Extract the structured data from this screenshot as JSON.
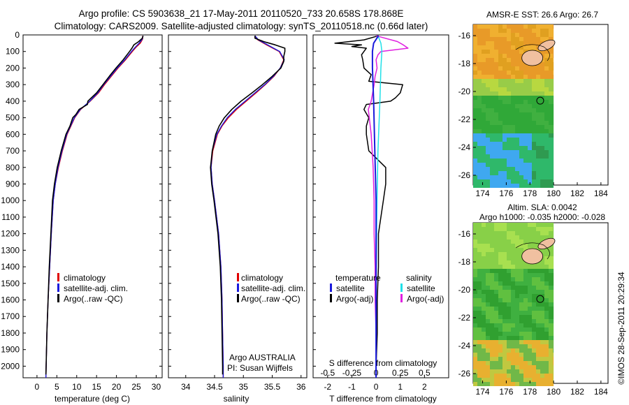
{
  "header": {
    "title_line1": "Argo profile: CS 5903638_21 17-May-2011 20110520_733 20.658S 178.868E",
    "title_line2": "Climatology: CARS2009. Satellite-adjusted climatology: synTS_20110518.nc (0.66d later)"
  },
  "depth_axis": {
    "ticks": [
      0,
      100,
      200,
      300,
      400,
      500,
      600,
      700,
      800,
      900,
      1000,
      1100,
      1200,
      1300,
      1400,
      1500,
      1600,
      1700,
      1800,
      1900,
      2000
    ],
    "ylim": [
      0,
      2070
    ]
  },
  "colors": {
    "climatology": "#e00000",
    "satellite": "#1a1adc",
    "argo": "#000000",
    "argo_adj_s": "#e020e0",
    "satellite_s": "#20e0e8"
  },
  "chart_data": [
    {
      "type": "line",
      "panel": "temperature",
      "xlabel": "temperature (deg C)",
      "xlim": [
        -3.5,
        31.5
      ],
      "xticks": [
        0,
        5,
        10,
        15,
        20,
        25,
        30
      ],
      "legend": [
        "climatology",
        "satellite-adj. clim.",
        "Argo(..raw -QC)"
      ],
      "series": [
        {
          "name": "climatology",
          "depth": [
            5,
            25,
            50,
            75,
            100,
            150,
            200,
            250,
            300,
            350,
            400,
            450,
            500,
            600,
            700,
            800,
            900,
            1000,
            1200,
            1400,
            1600,
            1800,
            2000,
            2070
          ],
          "values": [
            26.6,
            26.6,
            26.0,
            24.9,
            24.0,
            22.3,
            20.4,
            18.7,
            17.0,
            15.5,
            13.4,
            11.0,
            9.5,
            7.6,
            6.4,
            5.4,
            4.6,
            4.1,
            3.6,
            3.2,
            2.8,
            2.5,
            2.3,
            2.25
          ]
        },
        {
          "name": "satellite-adj. clim.",
          "depth": [
            5,
            25,
            50,
            75,
            100,
            150,
            200,
            250,
            300,
            350,
            400,
            450,
            500,
            600,
            700,
            800,
            900,
            1000,
            1200,
            1400,
            1600,
            1800,
            2000,
            2070
          ],
          "values": [
            26.7,
            26.5,
            25.7,
            24.7,
            23.8,
            22.1,
            20.2,
            18.5,
            16.8,
            15.3,
            13.3,
            10.9,
            9.4,
            7.5,
            6.3,
            5.3,
            4.6,
            4.1,
            3.6,
            3.2,
            2.8,
            2.5,
            2.3,
            2.25
          ]
        },
        {
          "name": "Argo(..raw -QC)",
          "depth": [
            5,
            20,
            40,
            60,
            80,
            100,
            150,
            200,
            250,
            300,
            350,
            400,
            420,
            450,
            480,
            500,
            550,
            600,
            700,
            800,
            900,
            1000,
            1200,
            1400,
            1600,
            1800,
            2000,
            2050
          ],
          "values": [
            26.7,
            26.5,
            25.6,
            24.4,
            23.9,
            23.3,
            21.7,
            19.9,
            18.2,
            16.6,
            15.0,
            12.8,
            12.7,
            10.6,
            9.8,
            9.0,
            8.3,
            7.3,
            6.1,
            5.1,
            4.4,
            3.9,
            3.5,
            3.1,
            2.8,
            2.5,
            2.3,
            2.25
          ]
        }
      ]
    },
    {
      "type": "line",
      "panel": "salinity",
      "xlabel": "salinity",
      "xlim": [
        33.7,
        36.1
      ],
      "xticks": [
        34,
        34.5,
        35,
        35.5,
        36
      ],
      "legend": [
        "climatology",
        "satellite-adj. clim.",
        "Argo(..raw -QC)"
      ],
      "annotation": [
        "Argo AUSTRALIA",
        "PI: Susan Wijffels"
      ],
      "series": [
        {
          "name": "climatology",
          "depth": [
            5,
            30,
            60,
            100,
            150,
            200,
            250,
            300,
            350,
            400,
            450,
            500,
            550,
            600,
            700,
            800,
            900,
            1000,
            1200,
            1400,
            1600,
            1800,
            2000,
            2070
          ],
          "values": [
            35.2,
            35.25,
            35.4,
            35.62,
            35.7,
            35.64,
            35.53,
            35.38,
            35.22,
            35.05,
            34.88,
            34.74,
            34.63,
            34.55,
            34.47,
            34.44,
            34.46,
            34.5,
            34.57,
            34.61,
            34.63,
            34.64,
            34.65,
            34.65
          ]
        },
        {
          "name": "satellite-adj. clim.",
          "depth": [
            5,
            30,
            60,
            100,
            150,
            200,
            250,
            300,
            350,
            400,
            450,
            500,
            550,
            600,
            700,
            800,
            900,
            1000,
            1200,
            1400,
            1600,
            1800,
            2000,
            2070
          ],
          "values": [
            35.2,
            35.26,
            35.42,
            35.63,
            35.71,
            35.64,
            35.52,
            35.37,
            35.2,
            35.03,
            34.86,
            34.72,
            34.62,
            34.54,
            34.46,
            34.44,
            34.46,
            34.5,
            34.57,
            34.61,
            34.63,
            34.64,
            34.65,
            34.65
          ]
        },
        {
          "name": "Argo(..raw -QC)",
          "depth": [
            5,
            20,
            40,
            60,
            80,
            100,
            130,
            160,
            200,
            250,
            300,
            350,
            400,
            450,
            500,
            550,
            600,
            700,
            800,
            900,
            1000,
            1200,
            1400,
            1600,
            1800,
            2000,
            2050
          ],
          "values": [
            35.2,
            35.2,
            35.35,
            35.55,
            35.72,
            35.72,
            35.7,
            35.7,
            35.65,
            35.5,
            35.33,
            35.15,
            34.96,
            34.8,
            34.67,
            34.58,
            34.52,
            34.46,
            34.43,
            34.45,
            34.49,
            34.56,
            34.6,
            34.62,
            34.63,
            34.64,
            34.64
          ]
        }
      ]
    },
    {
      "type": "line",
      "panel": "difference",
      "xlabel": "T difference from climatology",
      "xlabel_top": "S difference from climatology",
      "t_xlim": [
        -2.6,
        3.0
      ],
      "t_xticks": [
        -2,
        -1,
        0,
        1,
        2
      ],
      "s_ticks": [
        -0.5,
        -0.25,
        0,
        0.25,
        0.5
      ],
      "s_tick_labels": [
        "-0.5",
        "-0.25",
        "0",
        "0.25",
        "0.5"
      ],
      "legend": {
        "temperature_title": "temperature",
        "salinity_title": "salinity",
        "items": [
          "satellite",
          "Argo(-adj)",
          "satellite",
          "Argo(-adj)"
        ]
      },
      "series": [
        {
          "name": "T satellite",
          "depth": [
            5,
            50,
            100,
            200,
            400,
            700,
            1000,
            1500,
            2000,
            2070
          ],
          "values": [
            0.1,
            -0.1,
            -0.15,
            -0.15,
            -0.1,
            -0.05,
            0,
            0,
            0,
            0
          ]
        },
        {
          "name": "T Argo(-adj)",
          "depth": [
            5,
            30,
            50,
            60,
            70,
            80,
            100,
            120,
            150,
            200,
            240,
            280,
            300,
            350,
            380,
            400,
            420,
            450,
            500,
            550,
            600,
            700,
            800,
            900,
            1000,
            1100,
            1200,
            1400,
            1600,
            1800,
            2000,
            2040
          ],
          "values": [
            0.1,
            -0.5,
            -1.7,
            -0.6,
            -1.0,
            -0.4,
            -0.5,
            -0.6,
            -0.55,
            -0.5,
            -0.2,
            -0.3,
            1.1,
            1.0,
            0.8,
            0.6,
            -0.4,
            -0.5,
            -0.3,
            -0.4,
            -0.4,
            -0.3,
            0.4,
            0.4,
            0.3,
            0.2,
            0.1,
            0.1,
            0.05,
            0.05,
            0.0,
            0.0
          ]
        },
        {
          "name": "S satellite",
          "depth": [
            5,
            50,
            100,
            200,
            400,
            700,
            1000,
            1500,
            2000,
            2070
          ],
          "values": [
            0.02,
            0.05,
            0.06,
            0.05,
            0.04,
            0.02,
            0.01,
            0.0,
            0.0,
            0.0
          ]
        },
        {
          "name": "S Argo(-adj)",
          "depth": [
            5,
            40,
            60,
            80,
            100,
            120,
            150,
            200,
            250,
            300,
            400,
            450,
            500,
            600,
            700,
            800,
            1000,
            1200,
            1400,
            1600,
            1800,
            2000,
            2040
          ],
          "values": [
            0.0,
            0.22,
            0.28,
            0.33,
            0.05,
            0.02,
            0.0,
            0.01,
            -0.01,
            -0.02,
            -0.05,
            -0.08,
            -0.07,
            -0.05,
            -0.04,
            -0.03,
            -0.02,
            -0.02,
            -0.01,
            -0.01,
            0.0,
            0.0,
            0.0
          ]
        }
      ]
    }
  ],
  "maps": {
    "sst": {
      "title": "AMSR-E SST: 26.6  Argo: 26.7"
    },
    "sla": {
      "title_line1": "Altim. SLA: 0.0042",
      "title_line2": "Argo h1000: -0.035 h2000: -0.028"
    },
    "lon_ticks": [
      174,
      176,
      178,
      180,
      182,
      184
    ],
    "lat_ticks": [
      -16,
      -18,
      -20,
      -22,
      -24,
      -26
    ],
    "lon_tick_labels": [
      "174",
      "176",
      "178",
      "180",
      "182",
      "184"
    ],
    "lat_tick_labels": [
      "-16",
      "-18",
      "-20",
      "-22",
      "-24",
      "-26"
    ],
    "float_position": {
      "lon": 178.868,
      "lat": -20.658
    }
  },
  "footer": {
    "credit": "©IMOS 28-Sep-2011 20:29:34"
  }
}
